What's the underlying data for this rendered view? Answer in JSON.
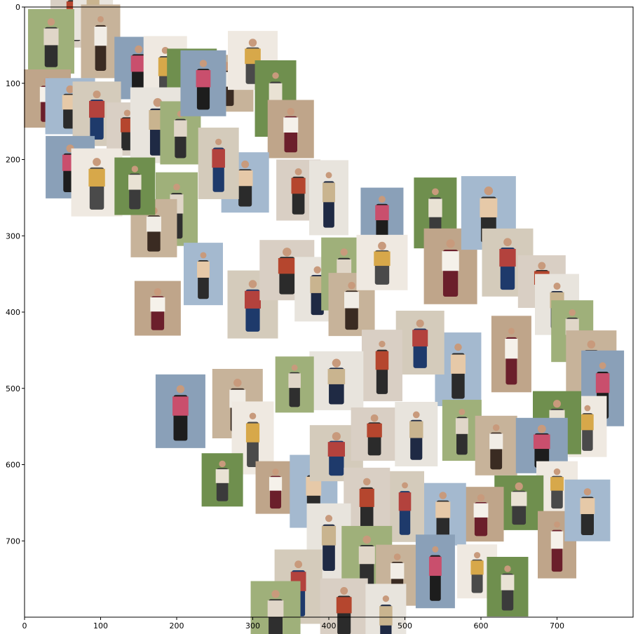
{
  "chart_data": {
    "type": "scatter",
    "title": "",
    "xlabel": "",
    "ylabel": "",
    "xlim": [
      0,
      800
    ],
    "ylim": [
      800,
      0
    ],
    "y_axis_inverted": true,
    "grid": false,
    "x_ticks": [
      "0",
      "100",
      "200",
      "300",
      "400",
      "500",
      "600",
      "700"
    ],
    "y_ticks": [
      "0",
      "100",
      "200",
      "300",
      "400",
      "500",
      "600",
      "700"
    ],
    "description_marks": "image thumbnails placed at 2-D embedding coordinates",
    "points": [
      {
        "x": 65,
        "y": 10
      },
      {
        "x": 90,
        "y": 5
      },
      {
        "x": 35,
        "y": 45
      },
      {
        "x": 100,
        "y": 45
      },
      {
        "x": 150,
        "y": 80
      },
      {
        "x": 185,
        "y": 85
      },
      {
        "x": 220,
        "y": 90
      },
      {
        "x": 30,
        "y": 120
      },
      {
        "x": 60,
        "y": 130
      },
      {
        "x": 95,
        "y": 140
      },
      {
        "x": 135,
        "y": 160
      },
      {
        "x": 175,
        "y": 155
      },
      {
        "x": 205,
        "y": 165
      },
      {
        "x": 265,
        "y": 100
      },
      {
        "x": 235,
        "y": 100
      },
      {
        "x": 300,
        "y": 70
      },
      {
        "x": 330,
        "y": 120
      },
      {
        "x": 350,
        "y": 160
      },
      {
        "x": 290,
        "y": 230
      },
      {
        "x": 255,
        "y": 205
      },
      {
        "x": 360,
        "y": 240
      },
      {
        "x": 400,
        "y": 250
      },
      {
        "x": 200,
        "y": 265
      },
      {
        "x": 170,
        "y": 290
      },
      {
        "x": 60,
        "y": 210
      },
      {
        "x": 95,
        "y": 230
      },
      {
        "x": 145,
        "y": 235
      },
      {
        "x": 175,
        "y": 395
      },
      {
        "x": 235,
        "y": 350
      },
      {
        "x": 300,
        "y": 390
      },
      {
        "x": 345,
        "y": 345
      },
      {
        "x": 385,
        "y": 370
      },
      {
        "x": 420,
        "y": 350
      },
      {
        "x": 430,
        "y": 390
      },
      {
        "x": 470,
        "y": 275
      },
      {
        "x": 470,
        "y": 335
      },
      {
        "x": 540,
        "y": 270
      },
      {
        "x": 560,
        "y": 340
      },
      {
        "x": 610,
        "y": 270
      },
      {
        "x": 635,
        "y": 335
      },
      {
        "x": 680,
        "y": 360
      },
      {
        "x": 700,
        "y": 390
      },
      {
        "x": 720,
        "y": 425
      },
      {
        "x": 745,
        "y": 470
      },
      {
        "x": 760,
        "y": 500
      },
      {
        "x": 740,
        "y": 550
      },
      {
        "x": 700,
        "y": 545
      },
      {
        "x": 640,
        "y": 455
      },
      {
        "x": 570,
        "y": 475
      },
      {
        "x": 520,
        "y": 440
      },
      {
        "x": 470,
        "y": 470
      },
      {
        "x": 410,
        "y": 490
      },
      {
        "x": 355,
        "y": 495
      },
      {
        "x": 280,
        "y": 520
      },
      {
        "x": 205,
        "y": 530
      },
      {
        "x": 300,
        "y": 565
      },
      {
        "x": 260,
        "y": 620
      },
      {
        "x": 330,
        "y": 630
      },
      {
        "x": 380,
        "y": 635
      },
      {
        "x": 410,
        "y": 585
      },
      {
        "x": 460,
        "y": 560
      },
      {
        "x": 515,
        "y": 560
      },
      {
        "x": 575,
        "y": 555
      },
      {
        "x": 620,
        "y": 575
      },
      {
        "x": 680,
        "y": 575
      },
      {
        "x": 700,
        "y": 630
      },
      {
        "x": 650,
        "y": 650
      },
      {
        "x": 600,
        "y": 665
      },
      {
        "x": 550,
        "y": 665
      },
      {
        "x": 500,
        "y": 655
      },
      {
        "x": 450,
        "y": 650
      },
      {
        "x": 400,
        "y": 700
      },
      {
        "x": 450,
        "y": 725
      },
      {
        "x": 490,
        "y": 745
      },
      {
        "x": 540,
        "y": 740
      },
      {
        "x": 595,
        "y": 740
      },
      {
        "x": 635,
        "y": 760
      },
      {
        "x": 700,
        "y": 705
      },
      {
        "x": 740,
        "y": 660
      },
      {
        "x": 360,
        "y": 760
      },
      {
        "x": 420,
        "y": 790
      },
      {
        "x": 475,
        "y": 805
      },
      {
        "x": 330,
        "y": 795
      }
    ]
  },
  "colors": {
    "axis": "#000000",
    "background": "#ffffff"
  }
}
